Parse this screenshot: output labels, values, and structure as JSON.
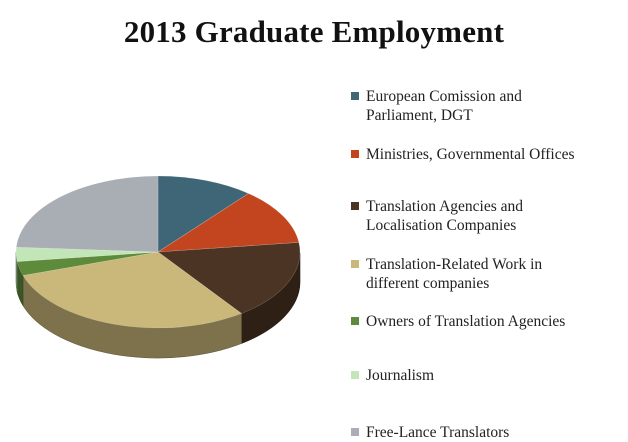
{
  "chart_data": {
    "type": "pie",
    "title": "2013 Graduate Employment",
    "style": "3d-tilted",
    "legend_position": "right",
    "slices": [
      {
        "label": "European Comission and Parliament, DGT",
        "label_lines": [
          "European Comission and",
          "Parliament, DGT"
        ],
        "value": 11,
        "color": "#3f6677"
      },
      {
        "label": "Ministries, Governmental Offices",
        "label_lines": [
          "Ministries, Governmental Offices"
        ],
        "value": 12,
        "color": "#c2451f"
      },
      {
        "label": "Translation Agencies and Localisation Companies",
        "label_lines": [
          "Translation Agencies and",
          "Localisation Companies"
        ],
        "value": 17,
        "color": "#4c3424"
      },
      {
        "label": "Translation-Related Work in different companies",
        "label_lines": [
          "Translation-Related Work in",
          "different companies"
        ],
        "value": 30,
        "color": "#c9b879"
      },
      {
        "label": "Owners of Translation Agencies",
        "label_lines": [
          "Owners of Translation Agencies"
        ],
        "value": 3,
        "color": "#5e8a3c"
      },
      {
        "label": "Journalism",
        "label_lines": [
          "Journalism"
        ],
        "value": 3,
        "color": "#c3e6b8"
      },
      {
        "label": "Free-Lance Translators",
        "label_lines": [
          "Free-Lance Translators"
        ],
        "value": 24,
        "color": "#a9aeb5"
      }
    ]
  }
}
